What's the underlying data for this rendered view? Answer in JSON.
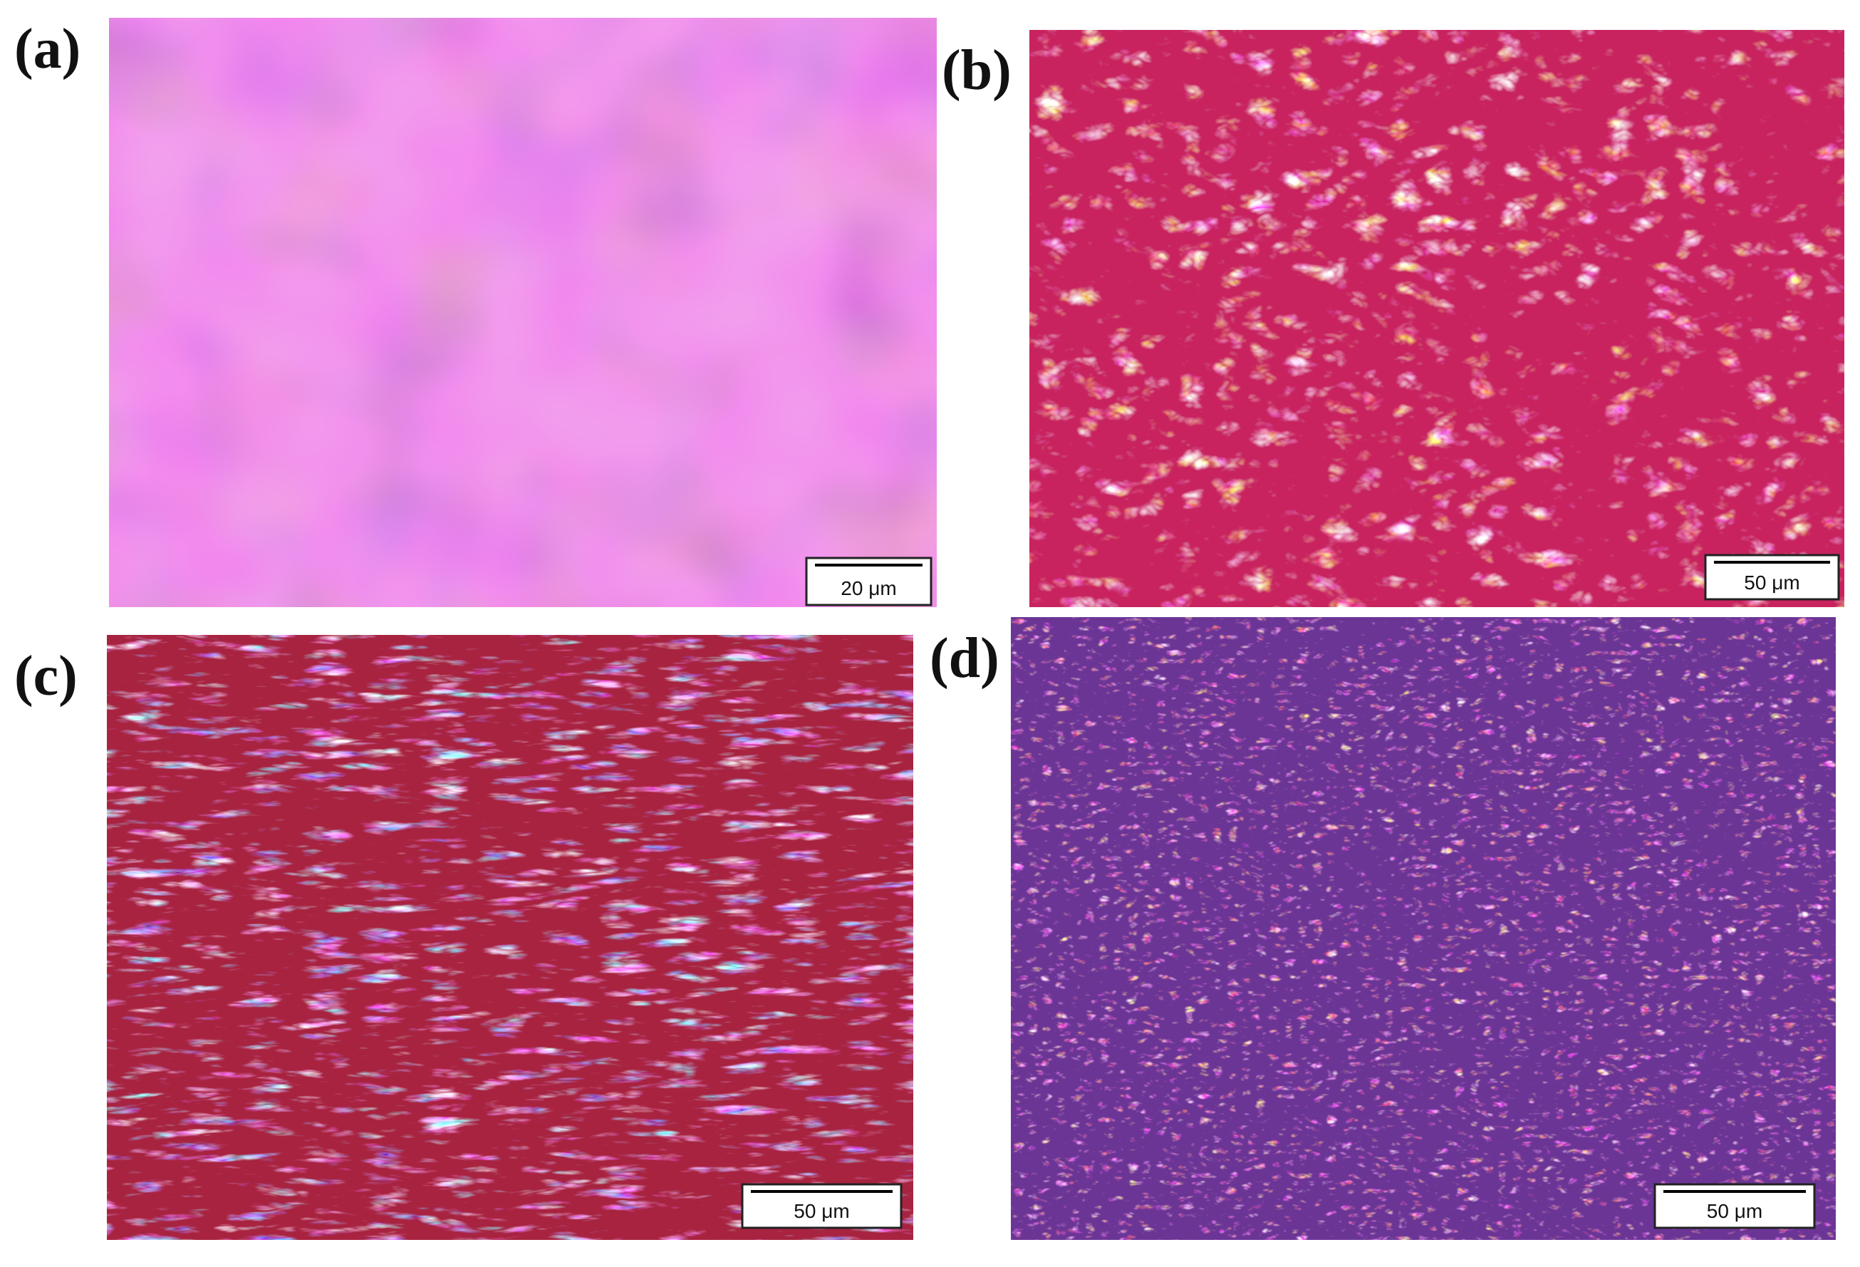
{
  "panels": [
    {
      "label": "(a)",
      "scale_bar": "20 μm"
    },
    {
      "label": "(b)",
      "scale_bar": "50 μm"
    },
    {
      "label": "(c)",
      "scale_bar": "50 μm"
    },
    {
      "label": "(d)",
      "scale_bar": "50 μm"
    }
  ]
}
